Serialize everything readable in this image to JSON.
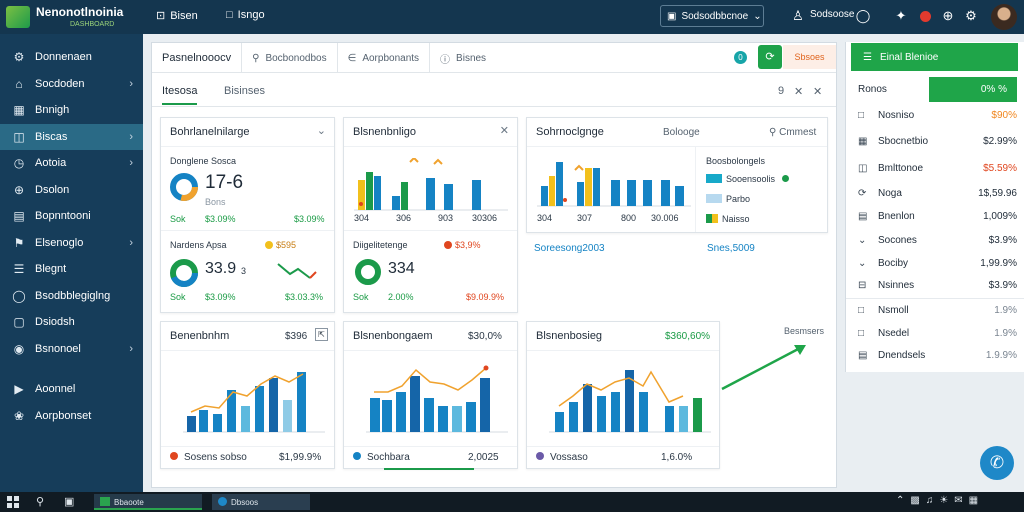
{
  "app": {
    "name": "Nenonotlnoinia",
    "subtitle": "DASHBOARD"
  },
  "topnav": {
    "item1": "Bisen",
    "item2": "Isngo"
  },
  "search": {
    "label": "Sodsodbbcnoe"
  },
  "topright": {
    "user_label": "Sodsoose"
  },
  "sidebar": {
    "items": [
      {
        "label": "Donnenaen",
        "icon": "gear-icon"
      },
      {
        "label": "Socdoden",
        "icon": "home-icon"
      },
      {
        "label": "Bnnigh",
        "icon": "chart-icon"
      },
      {
        "label": "Biscas",
        "icon": "table-icon"
      },
      {
        "label": "Aotoia",
        "icon": "clock-icon"
      },
      {
        "label": "Dsolon",
        "icon": "globe-icon"
      },
      {
        "label": "Bopnntooni",
        "icon": "document-icon"
      },
      {
        "label": "Elsenoglo",
        "icon": "tag-icon"
      },
      {
        "label": "Blegnt",
        "icon": "list-icon"
      },
      {
        "label": "Bsodbblegiglng",
        "icon": "users-icon"
      },
      {
        "label": "Dsiodsh",
        "icon": "folder-icon"
      },
      {
        "label": "Bsnonoel",
        "icon": "settings-icon"
      },
      {
        "label": "Aoonnel",
        "icon": "bell-icon"
      },
      {
        "label": "Aorpbonset",
        "icon": "puzzle-icon"
      }
    ]
  },
  "main": {
    "tabs": [
      {
        "label": "Pasnelnooocv"
      },
      {
        "label": "Bocbonodbos"
      },
      {
        "label": "Aorpbonants"
      },
      {
        "label": "Bisnes"
      }
    ],
    "badge": "0",
    "action_label": "Sbsoes",
    "subtabs": [
      {
        "label": "Itesosa"
      },
      {
        "label": "Bisinses"
      }
    ],
    "subtab_count": "9"
  },
  "cards": {
    "c1": {
      "title": "Bohrlanelnilarge",
      "label1": "Donglene Sosca",
      "big1": "17-6",
      "sub1": "Bons",
      "l1": "Sok",
      "v1": "$3.09%",
      "v1b": "$3.09%",
      "label2": "Nardens Apsa",
      "badge2": "$595",
      "big2": "33.9",
      "small2": "3",
      "l2": "Sok",
      "v2": "$3.09%",
      "v2b": "$3.03.3%"
    },
    "c2": {
      "title": "Blsnenbnligo",
      "ticks": [
        "304",
        "306",
        "903",
        "30306"
      ],
      "label2": "Diigelitetenge",
      "badge2": "$3,9%",
      "big2": "334",
      "l2": "Sok",
      "v2": "2.00%",
      "v2b": "$9.09.9%"
    },
    "c3": {
      "title": "Sohrnoclgnge",
      "subtitle": "Bolooge",
      "search": "Cmmest",
      "ticks": [
        "304",
        "307",
        "800",
        "30.006"
      ],
      "legend_title": "Boosbolongels",
      "legend": [
        {
          "label": "Sooensoolis"
        },
        {
          "label": "Parbo"
        },
        {
          "label": "Naisso"
        }
      ],
      "f1": "Soreesong2003",
      "f2": "Snes,5009"
    },
    "c4": {
      "title": "Benenbnhm",
      "value": "$396",
      "legend": "Sosens sobso",
      "legend_value": "$1,99.9%"
    },
    "c5": {
      "title": "Blsnenbongaem",
      "value": "$30,0%",
      "legend": "Sochbara",
      "legend_value": "2,0025"
    },
    "c6": {
      "title": "Blsnenbosieg",
      "value": "$360,60%",
      "legend": "Vossaso",
      "legend_value": "1,6.0%"
    },
    "trend_label": "Besmsers"
  },
  "rpanel": {
    "header": "Einal Blenioe",
    "row0_label": "Ronos",
    "row0_value": "0% %",
    "rows": [
      {
        "label": "Nosniso",
        "value": "$90%",
        "tone": "orange"
      },
      {
        "label": "Sbocnetbio",
        "value": "$2.99%",
        "tone": "dark"
      },
      {
        "label": "Bmlttonoe",
        "value": "$5.59%",
        "tone": "red"
      },
      {
        "label": "Noga",
        "value": "1$,59.96",
        "tone": "dark"
      },
      {
        "label": "Bnenlon",
        "value": "1,009%",
        "tone": "dark"
      },
      {
        "label": "Socones",
        "value": "$3.9%",
        "tone": "dark"
      },
      {
        "label": "Bociby",
        "value": "1,99.9%",
        "tone": "dark"
      },
      {
        "label": "Nsinnes",
        "value": "$3.9%",
        "tone": "dark"
      },
      {
        "label": "Nsmoll",
        "value": "1.9%",
        "tone": "dark"
      },
      {
        "label": "Nsedel",
        "value": "1.9%",
        "tone": "dark"
      },
      {
        "label": "Dnendsels",
        "value": "1.9.9%",
        "tone": "dark"
      }
    ]
  },
  "taskbar": {
    "app1": "Bbaoote",
    "app2": "Dbsoos"
  },
  "colors": {
    "accent": "#1fa549",
    "sidebar": "#163d5a",
    "blue": "#1583c4",
    "orange": "#f0a22e",
    "red": "#e0461f"
  }
}
